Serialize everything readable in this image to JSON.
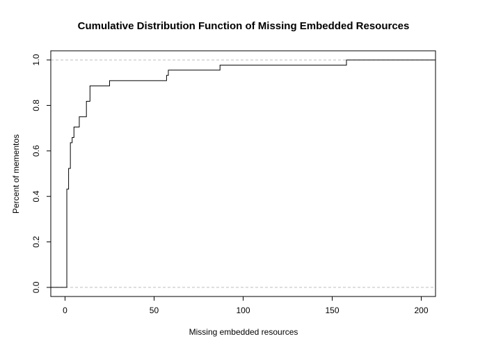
{
  "chart_data": {
    "type": "line",
    "step": true,
    "title": "Cumulative Distribution Function of Missing Embedded Resources",
    "xlabel": "Missing embedded resources",
    "ylabel": "Percent of mementos",
    "xlim": [
      -8,
      208
    ],
    "ylim": [
      -0.04,
      1.04
    ],
    "xticks": [
      0,
      50,
      100,
      150,
      200
    ],
    "yticks": [
      0.0,
      0.2,
      0.4,
      0.6,
      0.8,
      1.0
    ],
    "xtick_labels": [
      "0",
      "50",
      "100",
      "150",
      "200"
    ],
    "ytick_labels": [
      "0.0",
      "0.2",
      "0.4",
      "0.6",
      "0.8",
      "1.0"
    ],
    "reference_lines": [
      0,
      1
    ],
    "grid": false,
    "series": [
      {
        "x": [
          -8,
          1,
          2,
          3,
          4,
          5,
          8,
          12,
          14,
          25,
          57,
          58,
          87,
          158,
          208
        ],
        "y": [
          0,
          0.432,
          0.523,
          0.636,
          0.659,
          0.705,
          0.75,
          0.818,
          0.886,
          0.909,
          0.932,
          0.955,
          0.977,
          1.0,
          1.0
        ]
      }
    ]
  }
}
